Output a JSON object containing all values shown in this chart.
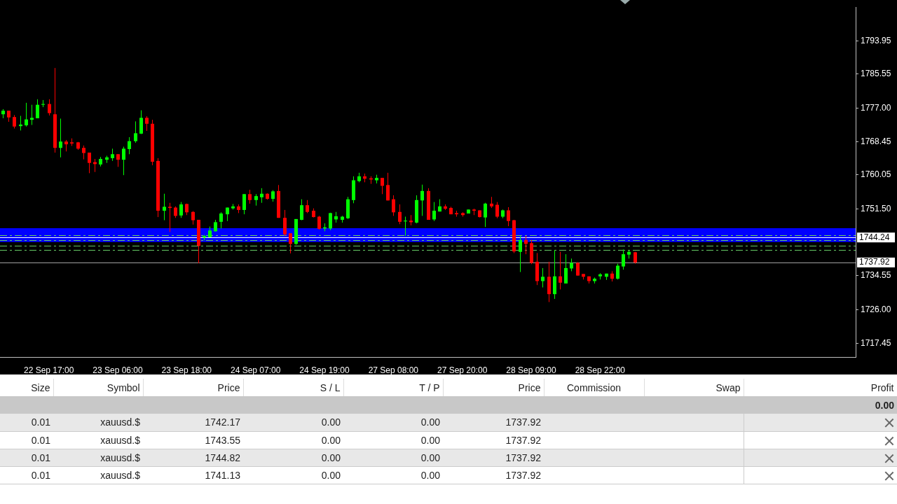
{
  "chart_data": [
    {
      "type": "candlestick",
      "categories": [
        null,
        null,
        null,
        null,
        null,
        null,
        null,
        null,
        "22 Sep 17:00",
        null,
        null,
        null,
        null,
        null,
        null,
        null,
        null,
        null,
        null,
        null,
        "23 Sep 06:00",
        null,
        null,
        null,
        null,
        null,
        null,
        null,
        null,
        null,
        null,
        null,
        "23 Sep 18:00",
        null,
        null,
        null,
        null,
        null,
        null,
        null,
        null,
        null,
        null,
        null,
        "24 Sep 07:00",
        null,
        null,
        null,
        null,
        null,
        null,
        null,
        null,
        null,
        null,
        null,
        "24 Sep 19:00",
        null,
        null,
        null,
        null,
        null,
        null,
        null,
        null,
        null,
        null,
        null,
        "27 Sep 08:00",
        null,
        null,
        null,
        null,
        null,
        null,
        null,
        null,
        null,
        null,
        null,
        "27 Sep 20:00",
        null,
        null,
        null,
        null,
        null,
        null,
        null,
        null,
        null,
        null,
        null,
        "28 Sep 09:00",
        null,
        null,
        null,
        null,
        null,
        null,
        null,
        null,
        null,
        null,
        null,
        "28 Sep 22:00",
        null,
        null,
        null,
        null,
        null,
        null,
        null,
        null,
        null,
        null,
        null,
        null,
        null,
        null,
        null,
        null,
        null,
        null,
        null,
        null,
        null,
        null,
        null,
        null,
        null,
        null,
        null,
        null,
        null,
        null,
        null,
        null,
        null,
        null,
        null,
        null,
        null,
        null,
        null,
        null,
        null,
        null,
        null,
        null
      ],
      "ohlc": [
        [
          1775.4,
          1776.7,
          1774.4,
          1776.3
        ],
        [
          1776.3,
          1776.3,
          1773.5,
          1774.6
        ],
        [
          1774.7,
          1775.2,
          1771.8,
          1772.3
        ],
        [
          1772.4,
          1775.0,
          1771.3,
          1772.8
        ],
        [
          1772.6,
          1778.3,
          1772.3,
          1774.1
        ],
        [
          1774.0,
          1777.8,
          1772.7,
          1774.5
        ],
        [
          1774.4,
          1779.2,
          1774.4,
          1777.8
        ],
        [
          1777.8,
          1779.0,
          1777.2,
          1778.0
        ],
        [
          1778.0,
          1779.2,
          1775.1,
          1775.7
        ],
        [
          1775.4,
          1787.1,
          1765.7,
          1766.9
        ],
        [
          1766.9,
          1774.3,
          1764.5,
          1768.5
        ],
        [
          1768.5,
          1768.9,
          1766.0,
          1767.8
        ],
        [
          1768.3,
          1769.3,
          1767.4,
          1768.0
        ],
        [
          1768.3,
          1768.4,
          1766.4,
          1766.7
        ],
        [
          1766.9,
          1767.5,
          1764.0,
          1765.6
        ],
        [
          1765.7,
          1765.7,
          1760.5,
          1763.1
        ],
        [
          1763.3,
          1764.1,
          1760.8,
          1762.8
        ],
        [
          1762.7,
          1764.6,
          1762.2,
          1764.1
        ],
        [
          1763.9,
          1764.9,
          1763.1,
          1764.5
        ],
        [
          1764.3,
          1766.7,
          1763.6,
          1765.3
        ],
        [
          1765.3,
          1765.3,
          1762.1,
          1763.9
        ],
        [
          1763.9,
          1767.2,
          1760.0,
          1766.7
        ],
        [
          1766.6,
          1769.6,
          1765.3,
          1768.6
        ],
        [
          1768.6,
          1773.6,
          1768.2,
          1770.6
        ],
        [
          1770.5,
          1776.4,
          1770.4,
          1774.5
        ],
        [
          1774.5,
          1774.9,
          1771.2,
          1773.0
        ],
        [
          1773.0,
          1774.0,
          1762.5,
          1763.4
        ],
        [
          1763.6,
          1764.3,
          1749.4,
          1751.0
        ],
        [
          1751.0,
          1755.3,
          1748.6,
          1752.0
        ],
        [
          1752.0,
          1753.0,
          1745.6,
          1751.7
        ],
        [
          1751.8,
          1752.1,
          1749.2,
          1749.7
        ],
        [
          1749.8,
          1753.2,
          1749.2,
          1752.6
        ],
        [
          1752.7,
          1752.8,
          1749.9,
          1750.6
        ],
        [
          1750.7,
          1750.9,
          1747.5,
          1748.6
        ],
        [
          1748.7,
          1748.7,
          1737.7,
          1742.1
        ],
        [
          1744.2,
          1744.9,
          1743.5,
          1744.6
        ],
        [
          1744.3,
          1747.0,
          1744.3,
          1746.0
        ],
        [
          1745.8,
          1748.7,
          1745.7,
          1748.1
        ],
        [
          1748.2,
          1750.6,
          1746.5,
          1750.3
        ],
        [
          1750.1,
          1751.8,
          1748.4,
          1751.8
        ],
        [
          1751.6,
          1752.7,
          1751.3,
          1752.1
        ],
        [
          1752.1,
          1752.6,
          1750.4,
          1751.2
        ],
        [
          1751.2,
          1755.2,
          1750.1,
          1755.2
        ],
        [
          1755.2,
          1756.3,
          1752.8,
          1753.7
        ],
        [
          1753.7,
          1755.2,
          1752.3,
          1754.7
        ],
        [
          1754.4,
          1756.7,
          1753.0,
          1755.3
        ],
        [
          1755.3,
          1755.4,
          1753.8,
          1754.0
        ],
        [
          1754.0,
          1756.2,
          1753.3,
          1755.9
        ],
        [
          1756.0,
          1757.5,
          1749.2,
          1749.2
        ],
        [
          1749.2,
          1751.2,
          1744.6,
          1745.0
        ],
        [
          1745.3,
          1745.3,
          1740.2,
          1742.6
        ],
        [
          1742.6,
          1748.9,
          1742.4,
          1748.9
        ],
        [
          1748.7,
          1753.9,
          1748.6,
          1752.4
        ],
        [
          1752.4,
          1753.7,
          1750.4,
          1750.7
        ],
        [
          1751.0,
          1751.6,
          1749.3,
          1749.4
        ],
        [
          1749.5,
          1749.7,
          1746.2,
          1746.4
        ],
        [
          1746.5,
          1747.8,
          1745.8,
          1746.8
        ],
        [
          1746.5,
          1750.5,
          1746.1,
          1750.4
        ],
        [
          1748.8,
          1750.7,
          1748.0,
          1749.6
        ],
        [
          1748.7,
          1749.7,
          1748.0,
          1749.5
        ],
        [
          1749.1,
          1754.5,
          1748.9,
          1753.9
        ],
        [
          1753.7,
          1759.7,
          1752.9,
          1758.7
        ],
        [
          1758.5,
          1760.6,
          1758.2,
          1759.7
        ],
        [
          1759.7,
          1760.4,
          1758.2,
          1759.1
        ],
        [
          1759.2,
          1759.7,
          1757.8,
          1758.9
        ],
        [
          1758.7,
          1760.1,
          1757.9,
          1759.3
        ],
        [
          1759.3,
          1759.3,
          1755.2,
          1757.3
        ],
        [
          1757.5,
          1760.6,
          1753.6,
          1753.6
        ],
        [
          1753.9,
          1754.9,
          1749.7,
          1750.6
        ],
        [
          1750.7,
          1752.6,
          1747.6,
          1748.2
        ],
        [
          1748.3,
          1749.5,
          1744.6,
          1748.5
        ],
        [
          1748.5,
          1749.9,
          1747.3,
          1748.1
        ],
        [
          1748.0,
          1754.9,
          1747.8,
          1753.7
        ],
        [
          1753.6,
          1757.6,
          1749.7,
          1756.0
        ],
        [
          1756.0,
          1756.7,
          1748.7,
          1748.7
        ],
        [
          1748.8,
          1753.2,
          1748.4,
          1751.0
        ],
        [
          1750.8,
          1753.9,
          1750.8,
          1752.1
        ],
        [
          1752.1,
          1752.6,
          1751.2,
          1751.5
        ],
        [
          1751.7,
          1752.0,
          1750.1,
          1750.1
        ],
        [
          1750.4,
          1751.0,
          1749.5,
          1750.1
        ],
        [
          1750.4,
          1750.6,
          1749.5,
          1749.9
        ],
        [
          1750.3,
          1751.3,
          1750.3,
          1751.3
        ],
        [
          1751.3,
          1751.5,
          1749.9,
          1751.0
        ],
        [
          1751.1,
          1751.1,
          1749.3,
          1749.4
        ],
        [
          1749.3,
          1753.0,
          1746.9,
          1752.8
        ],
        [
          1752.8,
          1754.5,
          1751.7,
          1752.1
        ],
        [
          1752.5,
          1753.2,
          1749.1,
          1749.5
        ],
        [
          1749.5,
          1751.3,
          1749.1,
          1751.1
        ],
        [
          1751.1,
          1751.9,
          1747.1,
          1748.4
        ],
        [
          1748.6,
          1748.7,
          1740.3,
          1740.7
        ],
        [
          1740.6,
          1744.6,
          1735.5,
          1743.6
        ],
        [
          1743.6,
          1744.6,
          1740.0,
          1742.6
        ],
        [
          1742.8,
          1743.6,
          1737.5,
          1737.8
        ],
        [
          1738.1,
          1740.3,
          1732.2,
          1733.2
        ],
        [
          1733.2,
          1736.5,
          1731.6,
          1734.3
        ],
        [
          1734.3,
          1738.1,
          1727.9,
          1729.9
        ],
        [
          1729.9,
          1741.0,
          1728.7,
          1734.4
        ],
        [
          1734.4,
          1740.6,
          1731.1,
          1732.8
        ],
        [
          1732.6,
          1740.0,
          1732.6,
          1736.5
        ],
        [
          1736.4,
          1738.9,
          1735.7,
          1737.8
        ],
        [
          1737.8,
          1738.0,
          1734.6,
          1734.6
        ],
        [
          1735.0,
          1735.0,
          1733.6,
          1734.3
        ],
        [
          1734.4,
          1734.4,
          1732.6,
          1733.2
        ],
        [
          1733.2,
          1734.1,
          1732.6,
          1733.8
        ],
        [
          1734.4,
          1735.2,
          1733.6,
          1734.9
        ],
        [
          1734.3,
          1735.1,
          1733.5,
          1735.1
        ],
        [
          1735.1,
          1735.7,
          1733.1,
          1733.8
        ],
        [
          1733.8,
          1737.6,
          1733.6,
          1737.1
        ],
        [
          1736.9,
          1741.2,
          1736.1,
          1740.0
        ],
        [
          1739.9,
          1741.0,
          1738.9,
          1740.6
        ],
        [
          1740.5,
          1740.6,
          1737.6,
          1737.9
        ],
        null,
        null,
        null,
        null,
        null,
        null,
        null,
        null,
        null,
        null,
        null,
        null,
        null,
        null,
        null,
        null,
        null,
        null,
        null,
        null,
        null,
        null,
        null,
        null,
        null,
        null,
        null,
        null,
        null,
        null,
        null,
        null,
        null,
        null,
        null,
        null,
        null,
        null
      ],
      "colors": [
        "#00ff00",
        "#ff0000",
        "#ff0000",
        "#00ff00",
        "#00ff00",
        "#00ff00",
        "#00ff00",
        "#00ff00",
        "#ff0000",
        "#ff0000",
        "#00ff00",
        "#ff0000",
        "#ff0000",
        "#ff0000",
        "#ff0000",
        "#ff0000",
        "#ff0000",
        "#00ff00",
        "#00ff00",
        "#00ff00",
        "#ff0000",
        "#00ff00",
        "#00ff00",
        "#00ff00",
        "#00ff00",
        "#ff0000",
        "#ff0000",
        "#ff0000",
        "#00ff00",
        "#ff0000",
        "#ff0000",
        "#00ff00",
        "#ff0000",
        "#ff0000",
        "#ff0000",
        "#00ff00",
        "#00ff00",
        "#00ff00",
        "#00ff00",
        "#00ff00",
        "#00ff00",
        "#ff0000",
        "#00ff00",
        "#ff0000",
        "#00ff00",
        "#00ff00",
        "#ff0000",
        "#00ff00",
        "#ff0000",
        "#ff0000",
        "#ff0000",
        "#00ff00",
        "#00ff00",
        "#ff0000",
        "#ff0000",
        "#ff0000",
        "#00ff00",
        "#00ff00",
        "#00ff00",
        "#00ff00",
        "#00ff00",
        "#00ff00",
        "#00ff00",
        "#ff0000",
        "#ff0000",
        "#00ff00",
        "#ff0000",
        "#ff0000",
        "#ff0000",
        "#ff0000",
        "#00ff00",
        "#ff0000",
        "#00ff00",
        "#00ff00",
        "#ff0000",
        "#00ff00",
        "#00ff00",
        "#ff0000",
        "#ff0000",
        "#ff0000",
        "#ff0000",
        "#00ff00",
        "#ff0000",
        "#ff0000",
        "#00ff00",
        "#ff0000",
        "#ff0000",
        "#00ff00",
        "#ff0000",
        "#ff0000",
        "#00ff00",
        "#ff0000",
        "#ff0000",
        "#ff0000",
        "#00ff00",
        "#ff0000",
        "#00ff00",
        "#ff0000",
        "#00ff00",
        "#00ff00",
        "#ff0000",
        "#ff0000",
        "#ff0000",
        "#00ff00",
        "#00ff00",
        "#00ff00",
        "#ff0000",
        "#00ff00",
        "#00ff00",
        "#00ff00",
        "#ff0000",
        null,
        null,
        null,
        null,
        null,
        null,
        null,
        null,
        null,
        null,
        null,
        null,
        null,
        null,
        null,
        null,
        null,
        null,
        null,
        null,
        null,
        null,
        null,
        null,
        null,
        null,
        null,
        null,
        null,
        null,
        null,
        null,
        null,
        null,
        null,
        null,
        null,
        null
      ],
      "ylim": [
        1714.0,
        1802.5
      ],
      "yticks": [
        {
          "value": 1717.45,
          "label": "1717.45"
        },
        {
          "value": 1726,
          "label": "1726.00"
        },
        {
          "value": 1734.55,
          "label": "1734.55"
        },
        {
          "value": 1751.5,
          "label": "1751.50"
        },
        {
          "value": 1760.05,
          "label": "1760.05"
        },
        {
          "value": 1768.45,
          "label": "1768.45"
        },
        {
          "value": 1777,
          "label": "1777.00"
        },
        {
          "value": 1785.55,
          "label": "1785.55"
        },
        {
          "value": 1793.95,
          "label": "1793.95"
        }
      ],
      "bands": [
        {
          "axis": "y",
          "from": 1743.1,
          "to": 1746.6,
          "color": "#0000ff"
        }
      ],
      "ref_lines": [
        {
          "axis": "y",
          "value": 1742.17,
          "color": "#66cc66",
          "line_style": "dashed"
        },
        {
          "axis": "y",
          "value": 1743.55,
          "color": "#66cc66",
          "line_style": "dashed"
        },
        {
          "axis": "y",
          "value": 1744.82,
          "color": "#66cc66",
          "line_style": "dashed"
        },
        {
          "axis": "y",
          "value": 1741.13,
          "color": "#66cc66",
          "line_style": "dashed"
        },
        {
          "axis": "y",
          "value": 1744.24,
          "label": "1744.24",
          "color": "#ffffff",
          "line_style": "solid"
        },
        {
          "axis": "y",
          "value": 1737.92,
          "label": "1737.92",
          "color": "#a0a0a0",
          "line_style": "solid"
        }
      ],
      "grid": false,
      "legend": false
    },
    {
      "type": "other",
      "categories": [
        "Size",
        "Symbol",
        "Price",
        "S / L",
        "T / P",
        "Price",
        "Commission",
        "Swap",
        "Profit"
      ],
      "cell_labels": [
        [
          null,
          null,
          null,
          null,
          null,
          null,
          null,
          null,
          "0.00"
        ],
        [
          "0.01",
          "xauusd.$",
          "1742.17",
          "0.00",
          "0.00",
          "1737.92",
          null,
          null,
          null
        ],
        [
          "0.01",
          "xauusd.$",
          "1743.55",
          "0.00",
          "0.00",
          "1737.92",
          null,
          null,
          null
        ],
        [
          "0.01",
          "xauusd.$",
          "1744.82",
          "0.00",
          "0.00",
          "1737.92",
          null,
          null,
          null
        ],
        [
          "0.01",
          "xauusd.$",
          "1741.13",
          "0.00",
          "0.00",
          "1737.92",
          null,
          null,
          null
        ]
      ]
    }
  ]
}
